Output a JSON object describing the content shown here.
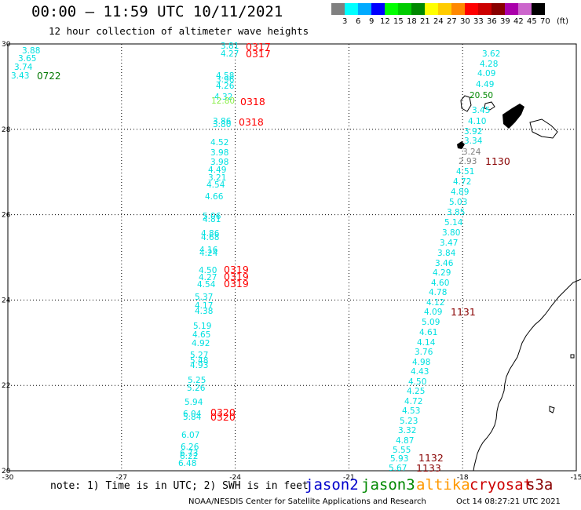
{
  "header": {
    "title": "00:00 – 11:59 UTC 10/11/2021",
    "subtitle": "12 hour collection of altimeter wave heights"
  },
  "legend": {
    "labels": [
      "3",
      "6",
      "9",
      "12",
      "15",
      "18",
      "21",
      "24",
      "27",
      "30",
      "33",
      "36",
      "39",
      "42",
      "45",
      "70"
    ],
    "unit": "(ft)",
    "colors": [
      "#808080",
      "#00ffff",
      "#00aaff",
      "#0000ff",
      "#00ff00",
      "#00cc00",
      "#008800",
      "#ffff00",
      "#ffcc00",
      "#ff8800",
      "#ff0000",
      "#cc0000",
      "#880000",
      "#aa00aa",
      "#cc66cc",
      "#000000"
    ]
  },
  "map": {
    "lon_range": [
      -30,
      -15
    ],
    "lat_range": [
      20,
      30
    ],
    "x_ticks": [
      "-30",
      "-27",
      "-24",
      "-21",
      "-18",
      "-15"
    ],
    "y_ticks": [
      "30",
      "28",
      "26",
      "24",
      "22",
      "20"
    ]
  },
  "tracks": {
    "wave_color": "#00e0e0",
    "time_color_red": "#ff0000",
    "time_color_maroon": "#880000",
    "time_color_green": "#007700",
    "track_a": [
      {
        "text": "3.88"
      },
      {
        "text": "3.65"
      },
      {
        "text": "3.74"
      },
      {
        "text": "3.43"
      }
    ],
    "track_a_time": "0722",
    "track_b": [
      {
        "text": "3.81"
      },
      {
        "text": "4.27"
      },
      {
        "text": "4.58"
      },
      {
        "text": "3.96"
      },
      {
        "text": "4.26"
      },
      {
        "text": "4.32"
      },
      {
        "text": "12.80"
      },
      {
        "text": "3.86"
      },
      {
        "text": "3.80"
      },
      {
        "text": "4.52"
      },
      {
        "text": "3.98"
      },
      {
        "text": "3.98"
      },
      {
        "text": "4.49"
      },
      {
        "text": "3.21"
      },
      {
        "text": "4.54"
      },
      {
        "text": "4.66"
      },
      {
        "text": "5.06"
      },
      {
        "text": "4.81"
      },
      {
        "text": "4.86"
      },
      {
        "text": "4.68"
      },
      {
        "text": "4.16"
      },
      {
        "text": "4.24"
      },
      {
        "text": "4.50"
      },
      {
        "text": "4.27"
      },
      {
        "text": "4.54"
      },
      {
        "text": "5.37"
      },
      {
        "text": "4.17"
      },
      {
        "text": "4.38"
      },
      {
        "text": "5.19"
      },
      {
        "text": "4.65"
      },
      {
        "text": "4.92"
      },
      {
        "text": "5.27"
      },
      {
        "text": "5.48"
      },
      {
        "text": "4.93"
      },
      {
        "text": "5.25"
      },
      {
        "text": "5.26"
      },
      {
        "text": "5.94"
      },
      {
        "text": "6.04"
      },
      {
        "text": "5.84"
      },
      {
        "text": "6.07"
      },
      {
        "text": "6.26"
      },
      {
        "text": "6.73"
      },
      {
        "text": "6.22"
      },
      {
        "text": "6.48"
      }
    ],
    "track_b_times": [
      {
        "text": "0317"
      },
      {
        "text": "0317"
      },
      {
        "text": "0318"
      },
      {
        "text": "0318"
      },
      {
        "text": "0319"
      },
      {
        "text": "0319"
      },
      {
        "text": "0319"
      },
      {
        "text": "0320"
      },
      {
        "text": "0320"
      }
    ],
    "track_c": [
      {
        "text": "3.62"
      },
      {
        "text": "4.28"
      },
      {
        "text": "4.09"
      },
      {
        "text": "4.49"
      },
      {
        "text": "20.50"
      },
      {
        "text": "3.45"
      },
      {
        "text": "4.10"
      },
      {
        "text": "3.92"
      },
      {
        "text": "3.34"
      },
      {
        "text": "3.24"
      },
      {
        "text": "2.93"
      },
      {
        "text": "4.51"
      },
      {
        "text": "4.72"
      },
      {
        "text": "4.89"
      },
      {
        "text": "5.03"
      },
      {
        "text": "3.85"
      },
      {
        "text": "5.14"
      },
      {
        "text": "3.80"
      },
      {
        "text": "3.47"
      },
      {
        "text": "3.84"
      },
      {
        "text": "3.46"
      },
      {
        "text": "4.29"
      },
      {
        "text": "4.60"
      },
      {
        "text": "4.78"
      },
      {
        "text": "4.12"
      },
      {
        "text": "4.09"
      },
      {
        "text": "5.09"
      },
      {
        "text": "4.61"
      },
      {
        "text": "4.14"
      },
      {
        "text": "3.76"
      },
      {
        "text": "4.98"
      },
      {
        "text": "4.43"
      },
      {
        "text": "4.50"
      },
      {
        "text": "4.25"
      },
      {
        "text": "4.72"
      },
      {
        "text": "4.53"
      },
      {
        "text": "5.23"
      },
      {
        "text": "3.32"
      },
      {
        "text": "4.87"
      },
      {
        "text": "5.55"
      },
      {
        "text": "5.93"
      },
      {
        "text": "5.67"
      }
    ],
    "track_c_times": [
      {
        "text": "1130"
      },
      {
        "text": "1131"
      },
      {
        "text": "1132"
      },
      {
        "text": "1133"
      }
    ]
  },
  "footer": {
    "note": "note: 1) Time is in UTC; 2) SWH is in feet",
    "satellites": [
      {
        "name": "jason2",
        "color": "#0000cc"
      },
      {
        "name": "jason3",
        "color": "#008800"
      },
      {
        "name": "altika",
        "color": "#ff9900"
      },
      {
        "name": "cryosat",
        "color": "#cc0000"
      },
      {
        "name": "s3a",
        "color": "#880000"
      }
    ],
    "credit": "NOAA/NESDIS Center for Satellite Applications and Research",
    "timestamp": "Oct 14 08:27:21 UTC 2021"
  }
}
